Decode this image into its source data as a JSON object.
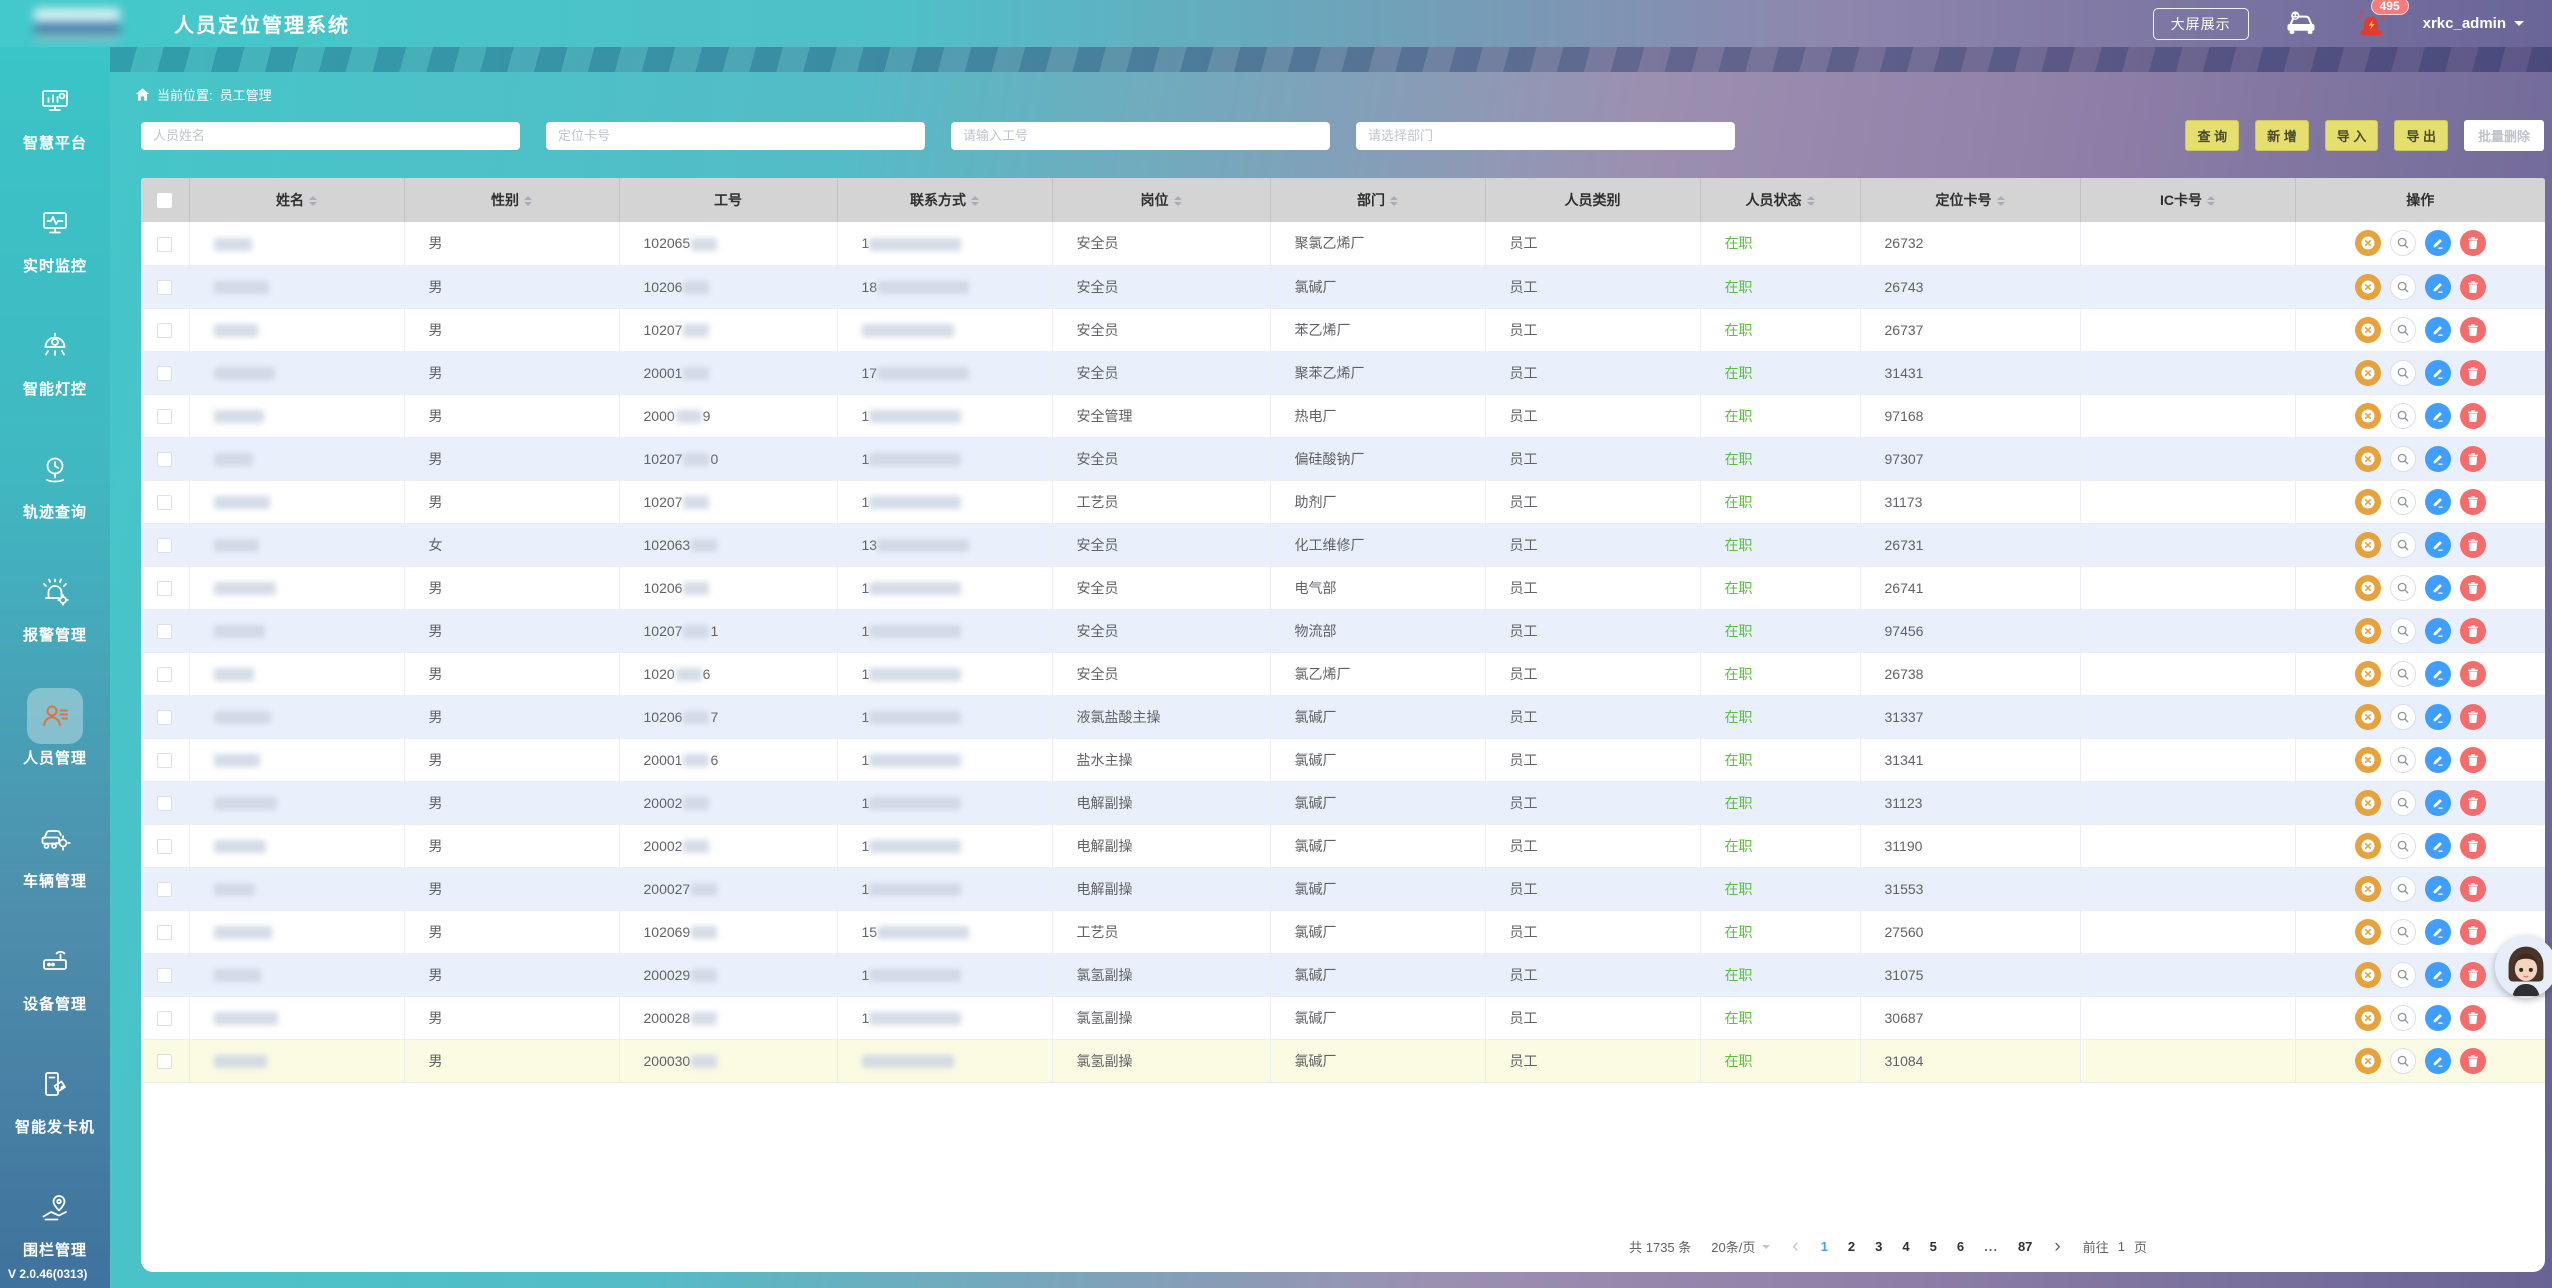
{
  "app": {
    "title": "人员定位管理系统",
    "version": "V 2.0.46(0313)"
  },
  "header": {
    "big_screen": "大屏展示",
    "alarm_count": "495",
    "username": "xrkc_admin"
  },
  "sidebar": {
    "items": [
      {
        "key": "smart-platform",
        "label": "智慧平台",
        "active": false
      },
      {
        "key": "realtime-monitor",
        "label": "实时监控",
        "active": false
      },
      {
        "key": "light-control",
        "label": "智能灯控",
        "active": false
      },
      {
        "key": "track-query",
        "label": "轨迹查询",
        "active": false
      },
      {
        "key": "alarm-manage",
        "label": "报警管理",
        "active": false
      },
      {
        "key": "personnel-manage",
        "label": "人员管理",
        "active": true
      },
      {
        "key": "vehicle-manage",
        "label": "车辆管理",
        "active": false
      },
      {
        "key": "device-manage",
        "label": "设备管理",
        "active": false
      },
      {
        "key": "card-dispenser",
        "label": "智能发卡机",
        "active": false
      },
      {
        "key": "fence-manage",
        "label": "围栏管理",
        "active": false
      }
    ]
  },
  "breadcrumb": {
    "label": "当前位置:",
    "current": "员工管理"
  },
  "filters": {
    "name_placeholder": "人员姓名",
    "card_placeholder": "定位卡号",
    "empno_placeholder": "请输入工号",
    "dept_placeholder": "请选择部门"
  },
  "toolbar": {
    "query": "查 询",
    "add": "新 增",
    "import": "导 入",
    "export": "导 出",
    "batch_delete": "批量删除"
  },
  "table": {
    "columns": [
      {
        "key": "name",
        "label": "姓名",
        "sortable": true
      },
      {
        "key": "gender",
        "label": "性别",
        "sortable": true
      },
      {
        "key": "empno",
        "label": "工号",
        "sortable": false
      },
      {
        "key": "contact",
        "label": "联系方式",
        "sortable": true
      },
      {
        "key": "position",
        "label": "岗位",
        "sortable": true
      },
      {
        "key": "department",
        "label": "部门",
        "sortable": true
      },
      {
        "key": "category",
        "label": "人员类别",
        "sortable": false
      },
      {
        "key": "status",
        "label": "人员状态",
        "sortable": true
      },
      {
        "key": "card",
        "label": "定位卡号",
        "sortable": true
      },
      {
        "key": "ic",
        "label": "IC卡号",
        "sortable": true
      },
      {
        "key": "actions",
        "label": "操作",
        "sortable": false
      }
    ],
    "rows": [
      {
        "gender": "男",
        "empno_prefix": "102065",
        "empno_suffix": "",
        "contact_prefix": "1",
        "position": "安全员",
        "department": "聚氯乙烯厂",
        "category": "员工",
        "status": "在职",
        "card": "26732",
        "ic": "",
        "highlight": false
      },
      {
        "gender": "男",
        "empno_prefix": "10206",
        "empno_suffix": "",
        "contact_prefix": "18",
        "position": "安全员",
        "department": "氯碱厂",
        "category": "员工",
        "status": "在职",
        "card": "26743",
        "ic": "",
        "highlight": false
      },
      {
        "gender": "男",
        "empno_prefix": "10207",
        "empno_suffix": "",
        "contact_prefix": "",
        "position": "安全员",
        "department": "苯乙烯厂",
        "category": "员工",
        "status": "在职",
        "card": "26737",
        "ic": "",
        "highlight": false
      },
      {
        "gender": "男",
        "empno_prefix": "20001",
        "empno_suffix": "",
        "contact_prefix": "17",
        "position": "安全员",
        "department": "聚苯乙烯厂",
        "category": "员工",
        "status": "在职",
        "card": "31431",
        "ic": "",
        "highlight": false
      },
      {
        "gender": "男",
        "empno_prefix": "2000",
        "empno_suffix": "9",
        "contact_prefix": "1",
        "position": "安全管理",
        "department": "热电厂",
        "category": "员工",
        "status": "在职",
        "card": "97168",
        "ic": "",
        "highlight": false
      },
      {
        "gender": "男",
        "empno_prefix": "10207",
        "empno_suffix": "0",
        "contact_prefix": "1",
        "position": "安全员",
        "department": "偏硅酸钠厂",
        "category": "员工",
        "status": "在职",
        "card": "97307",
        "ic": "",
        "highlight": false
      },
      {
        "gender": "男",
        "empno_prefix": "10207",
        "empno_suffix": "",
        "contact_prefix": "1",
        "position": "工艺员",
        "department": "助剂厂",
        "category": "员工",
        "status": "在职",
        "card": "31173",
        "ic": "",
        "highlight": false
      },
      {
        "gender": "女",
        "empno_prefix": "102063",
        "empno_suffix": "",
        "contact_prefix": "13",
        "position": "安全员",
        "department": "化工维修厂",
        "category": "员工",
        "status": "在职",
        "card": "26731",
        "ic": "",
        "highlight": false
      },
      {
        "gender": "男",
        "empno_prefix": "10206",
        "empno_suffix": "",
        "contact_prefix": "1",
        "position": "安全员",
        "department": "电气部",
        "category": "员工",
        "status": "在职",
        "card": "26741",
        "ic": "",
        "highlight": false
      },
      {
        "gender": "男",
        "empno_prefix": "10207",
        "empno_suffix": "1",
        "contact_prefix": "1",
        "position": "安全员",
        "department": "物流部",
        "category": "员工",
        "status": "在职",
        "card": "97456",
        "ic": "",
        "highlight": false
      },
      {
        "gender": "男",
        "empno_prefix": "1020",
        "empno_suffix": "6",
        "contact_prefix": "1",
        "position": "安全员",
        "department": "氯乙烯厂",
        "category": "员工",
        "status": "在职",
        "card": "26738",
        "ic": "",
        "highlight": false
      },
      {
        "gender": "男",
        "empno_prefix": "10206",
        "empno_suffix": "7",
        "contact_prefix": "1",
        "position": "液氯盐酸主操",
        "department": "氯碱厂",
        "category": "员工",
        "status": "在职",
        "card": "31337",
        "ic": "",
        "highlight": false
      },
      {
        "gender": "男",
        "empno_prefix": "20001",
        "empno_suffix": "6",
        "contact_prefix": "1",
        "position": "盐水主操",
        "department": "氯碱厂",
        "category": "员工",
        "status": "在职",
        "card": "31341",
        "ic": "",
        "highlight": false
      },
      {
        "gender": "男",
        "empno_prefix": "20002",
        "empno_suffix": "",
        "contact_prefix": "1",
        "position": "电解副操",
        "department": "氯碱厂",
        "category": "员工",
        "status": "在职",
        "card": "31123",
        "ic": "",
        "highlight": false
      },
      {
        "gender": "男",
        "empno_prefix": "20002",
        "empno_suffix": "",
        "contact_prefix": "1",
        "position": "电解副操",
        "department": "氯碱厂",
        "category": "员工",
        "status": "在职",
        "card": "31190",
        "ic": "",
        "highlight": false
      },
      {
        "gender": "男",
        "empno_prefix": "200027",
        "empno_suffix": "",
        "contact_prefix": "1",
        "position": "电解副操",
        "department": "氯碱厂",
        "category": "员工",
        "status": "在职",
        "card": "31553",
        "ic": "",
        "highlight": false
      },
      {
        "gender": "男",
        "empno_prefix": "102069",
        "empno_suffix": "",
        "contact_prefix": "15",
        "position": "工艺员",
        "department": "氯碱厂",
        "category": "员工",
        "status": "在职",
        "card": "27560",
        "ic": "",
        "highlight": false
      },
      {
        "gender": "男",
        "empno_prefix": "200029",
        "empno_suffix": "",
        "contact_prefix": "1",
        "position": "氯氢副操",
        "department": "氯碱厂",
        "category": "员工",
        "status": "在职",
        "card": "31075",
        "ic": "",
        "highlight": false
      },
      {
        "gender": "男",
        "empno_prefix": "200028",
        "empno_suffix": "",
        "contact_prefix": "1",
        "position": "氯氢副操",
        "department": "氯碱厂",
        "category": "员工",
        "status": "在职",
        "card": "30687",
        "ic": "",
        "highlight": false
      },
      {
        "gender": "男",
        "empno_prefix": "200030",
        "empno_suffix": "",
        "contact_prefix": "",
        "position": "氯氢副操",
        "department": "氯碱厂",
        "category": "员工",
        "status": "在职",
        "card": "31084",
        "ic": "",
        "highlight": true
      }
    ]
  },
  "pagination": {
    "total": "共 1735 条",
    "per_page": "20条/页",
    "pages": [
      "1",
      "2",
      "3",
      "4",
      "5",
      "6",
      "...",
      "87"
    ],
    "active_page": "1",
    "goto_label": "前往",
    "goto_value": "1",
    "goto_unit": "页"
  },
  "colors": {
    "status_active": "#5CBE3E",
    "accent_blue": "#409EFF",
    "action_orange": "#E6A23C",
    "action_red": "#F56C6C",
    "button_yellow": "#E5DF6F"
  }
}
